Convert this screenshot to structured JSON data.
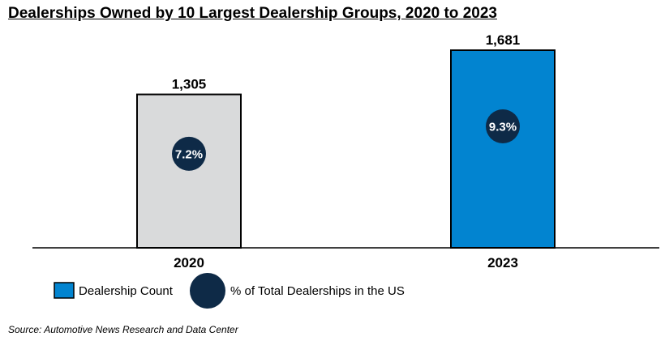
{
  "chart_data": {
    "type": "bar",
    "title": "Dealerships Owned by 10 Largest Dealership Groups, 2020 to 2023",
    "categories": [
      "2020",
      "2023"
    ],
    "series": [
      {
        "name": "Dealership Count",
        "values": [
          1305,
          1681
        ],
        "value_labels": [
          "1,305",
          "1,681"
        ],
        "colors": [
          "#d9dadb",
          "#0284d0"
        ]
      },
      {
        "name": "% of Total Dealerships in the US",
        "values": [
          7.2,
          9.3
        ],
        "value_labels": [
          "7.2%",
          "9.3%"
        ],
        "color": "#0e2a47"
      }
    ],
    "ylim": [
      0,
      1681
    ],
    "grid": false,
    "legend": "bottom-left",
    "source": "Source: Automotive News Research and Data Center"
  }
}
